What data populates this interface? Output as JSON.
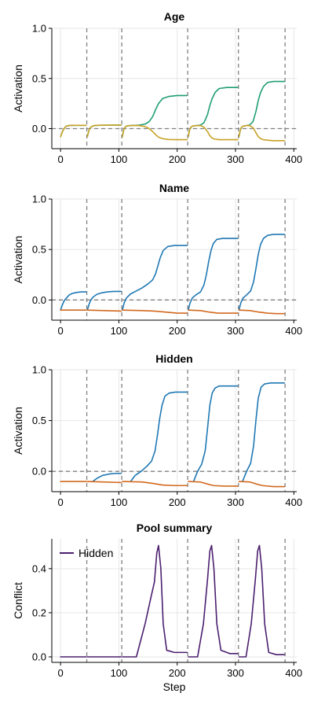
{
  "colors": {
    "background": "#ffffff",
    "grid": "#e6e6e6",
    "axis": "#000000",
    "boundary_line": "#808080",
    "zero_line": "#808080",
    "green": "#1f9e73",
    "gold": "#c9a227",
    "orange": "#d2691e",
    "blue": "#1f78b4",
    "purple": "#4b1f6f"
  },
  "chart_data": [
    {
      "type": "line",
      "title": "Age",
      "xlabel": "",
      "ylabel": "Activation",
      "xlim": [
        -15,
        405
      ],
      "ylim": [
        -0.2,
        1.0
      ],
      "xticks": [
        0,
        100,
        200,
        300,
        400
      ],
      "xtick_labels": [
        "0",
        "100",
        "200",
        "300",
        "400"
      ],
      "yticks": [
        0.0,
        0.5,
        1.0
      ],
      "ytick_labels": [
        "0.0",
        "0.5",
        "1.0"
      ],
      "grid": true,
      "zero_line": true,
      "boundaries": [
        45,
        105,
        218,
        305,
        385
      ],
      "series": [
        {
          "color_key": "green",
          "x": [
            0,
            2,
            4,
            6,
            8,
            10,
            14,
            18,
            25,
            35,
            44
          ],
          "y": [
            -0.08,
            -0.05,
            -0.02,
            0.0,
            0.015,
            0.025,
            0.03,
            0.032,
            0.033,
            0.033,
            0.033
          ]
        },
        {
          "color_key": "gold",
          "x": [
            0,
            2,
            4,
            6,
            8,
            10,
            14,
            18,
            25,
            35,
            44
          ],
          "y": [
            -0.08,
            -0.05,
            -0.02,
            0.0,
            0.015,
            0.025,
            0.03,
            0.032,
            0.033,
            0.033,
            0.033
          ]
        },
        {
          "color_key": "green",
          "x": [
            46,
            48,
            50,
            52,
            56,
            60,
            70,
            85,
            104
          ],
          "y": [
            -0.08,
            -0.03,
            0.0,
            0.015,
            0.028,
            0.032,
            0.034,
            0.035,
            0.035
          ]
        },
        {
          "color_key": "gold",
          "x": [
            46,
            48,
            50,
            52,
            56,
            60,
            70,
            85,
            104
          ],
          "y": [
            -0.08,
            -0.03,
            0.0,
            0.015,
            0.028,
            0.032,
            0.034,
            0.035,
            0.035
          ]
        },
        {
          "color_key": "green",
          "x": [
            106,
            108,
            110,
            113,
            118,
            125,
            135,
            145,
            152,
            158,
            163,
            168,
            175,
            185,
            200,
            217
          ],
          "y": [
            -0.08,
            -0.02,
            0.01,
            0.025,
            0.03,
            0.032,
            0.035,
            0.045,
            0.07,
            0.12,
            0.19,
            0.25,
            0.3,
            0.32,
            0.33,
            0.33
          ]
        },
        {
          "color_key": "gold",
          "x": [
            106,
            108,
            110,
            113,
            118,
            125,
            135,
            145,
            152,
            158,
            163,
            168,
            175,
            185,
            200,
            217
          ],
          "y": [
            -0.08,
            -0.02,
            0.01,
            0.025,
            0.03,
            0.032,
            0.03,
            0.02,
            0.0,
            -0.03,
            -0.06,
            -0.085,
            -0.1,
            -0.108,
            -0.11,
            -0.11
          ]
        },
        {
          "color_key": "green",
          "x": [
            219,
            221,
            223,
            226,
            232,
            240,
            246,
            252,
            256,
            260,
            265,
            272,
            285,
            304
          ],
          "y": [
            -0.08,
            -0.02,
            0.01,
            0.025,
            0.03,
            0.035,
            0.06,
            0.14,
            0.23,
            0.3,
            0.36,
            0.4,
            0.41,
            0.41
          ]
        },
        {
          "color_key": "gold",
          "x": [
            219,
            221,
            223,
            226,
            232,
            240,
            246,
            252,
            256,
            260,
            265,
            272,
            285,
            304
          ],
          "y": [
            -0.08,
            -0.02,
            0.01,
            0.025,
            0.03,
            0.03,
            0.015,
            -0.03,
            -0.07,
            -0.095,
            -0.105,
            -0.11,
            -0.11,
            -0.11
          ]
        },
        {
          "color_key": "green",
          "x": [
            306,
            308,
            310,
            313,
            318,
            324,
            330,
            335,
            339,
            343,
            348,
            355,
            365,
            384
          ],
          "y": [
            -0.08,
            -0.02,
            0.01,
            0.025,
            0.03,
            0.035,
            0.07,
            0.17,
            0.28,
            0.36,
            0.42,
            0.46,
            0.47,
            0.47
          ]
        },
        {
          "color_key": "gold",
          "x": [
            306,
            308,
            310,
            313,
            318,
            324,
            330,
            335,
            339,
            343,
            348,
            355,
            365,
            384
          ],
          "y": [
            -0.08,
            -0.02,
            0.01,
            0.025,
            0.03,
            0.03,
            0.01,
            -0.04,
            -0.08,
            -0.1,
            -0.11,
            -0.115,
            -0.12,
            -0.12
          ]
        }
      ]
    },
    {
      "type": "line",
      "title": "Name",
      "xlabel": "",
      "ylabel": "Activation",
      "xlim": [
        -15,
        405
      ],
      "ylim": [
        -0.2,
        1.0
      ],
      "xticks": [
        0,
        100,
        200,
        300,
        400
      ],
      "xtick_labels": [
        "0",
        "100",
        "200",
        "300",
        "400"
      ],
      "yticks": [
        0.0,
        0.5,
        1.0
      ],
      "ytick_labels": [
        "0.0",
        "0.5",
        "1.0"
      ],
      "grid": true,
      "zero_line": true,
      "boundaries": [
        45,
        105,
        218,
        305,
        385
      ],
      "series": [
        {
          "color_key": "blue",
          "x": [
            0,
            3,
            6,
            10,
            15,
            20,
            28,
            36,
            44
          ],
          "y": [
            -0.1,
            -0.05,
            -0.01,
            0.02,
            0.05,
            0.065,
            0.075,
            0.08,
            0.08
          ]
        },
        {
          "color_key": "blue",
          "x": [
            46,
            49,
            52,
            56,
            62,
            70,
            80,
            92,
            104
          ],
          "y": [
            -0.1,
            -0.04,
            0.0,
            0.03,
            0.055,
            0.07,
            0.08,
            0.085,
            0.085
          ]
        },
        {
          "color_key": "blue",
          "x": [
            106,
            109,
            113,
            120,
            130,
            140,
            150,
            158,
            163,
            167,
            171,
            176,
            184,
            195,
            217
          ],
          "y": [
            -0.1,
            -0.03,
            0.02,
            0.06,
            0.09,
            0.12,
            0.16,
            0.2,
            0.26,
            0.34,
            0.42,
            0.49,
            0.53,
            0.54,
            0.54
          ]
        },
        {
          "color_key": "blue",
          "x": [
            219,
            222,
            226,
            232,
            240,
            246,
            250,
            254,
            258,
            262,
            268,
            278,
            290,
            304
          ],
          "y": [
            -0.1,
            -0.03,
            0.02,
            0.05,
            0.08,
            0.15,
            0.25,
            0.38,
            0.49,
            0.56,
            0.6,
            0.61,
            0.61,
            0.61
          ]
        },
        {
          "color_key": "blue",
          "x": [
            306,
            309,
            313,
            319,
            326,
            331,
            335,
            339,
            343,
            348,
            355,
            365,
            384
          ],
          "y": [
            -0.1,
            -0.03,
            0.02,
            0.05,
            0.09,
            0.18,
            0.31,
            0.45,
            0.55,
            0.61,
            0.64,
            0.65,
            0.65
          ]
        },
        {
          "color_key": "orange",
          "x": [
            0,
            20,
            44
          ],
          "y": [
            -0.1,
            -0.1,
            -0.1
          ]
        },
        {
          "color_key": "orange",
          "x": [
            46,
            75,
            104
          ],
          "y": [
            -0.1,
            -0.105,
            -0.11
          ]
        },
        {
          "color_key": "orange",
          "x": [
            106,
            140,
            160,
            180,
            200,
            217
          ],
          "y": [
            -0.1,
            -0.105,
            -0.11,
            -0.12,
            -0.13,
            -0.13
          ]
        },
        {
          "color_key": "orange",
          "x": [
            219,
            240,
            255,
            270,
            290,
            304
          ],
          "y": [
            -0.1,
            -0.105,
            -0.12,
            -0.13,
            -0.13,
            -0.13
          ]
        },
        {
          "color_key": "orange",
          "x": [
            306,
            325,
            340,
            355,
            370,
            384
          ],
          "y": [
            -0.1,
            -0.105,
            -0.12,
            -0.13,
            -0.135,
            -0.135
          ]
        }
      ]
    },
    {
      "type": "line",
      "title": "Hidden",
      "xlabel": "",
      "ylabel": "Activation",
      "xlim": [
        -15,
        405
      ],
      "ylim": [
        -0.2,
        1.0
      ],
      "xticks": [
        0,
        100,
        200,
        300,
        400
      ],
      "xtick_labels": [
        "0",
        "100",
        "200",
        "300",
        "400"
      ],
      "yticks": [
        0.0,
        0.5,
        1.0
      ],
      "ytick_labels": [
        "0.0",
        "0.5",
        "1.0"
      ],
      "grid": true,
      "zero_line": true,
      "boundaries": [
        45,
        105,
        218,
        305,
        385
      ],
      "series": [
        {
          "color_key": "blue",
          "x": [
            55,
            62,
            72,
            85,
            95,
            104
          ],
          "y": [
            -0.1,
            -0.07,
            -0.04,
            -0.025,
            -0.02,
            -0.02
          ]
        },
        {
          "color_key": "blue",
          "x": [
            120,
            128,
            138,
            148,
            156,
            162,
            166,
            170,
            174,
            179,
            186,
            197,
            217
          ],
          "y": [
            -0.1,
            -0.04,
            0.0,
            0.05,
            0.1,
            0.2,
            0.35,
            0.52,
            0.65,
            0.74,
            0.77,
            0.78,
            0.78
          ]
        },
        {
          "color_key": "blue",
          "x": [
            228,
            235,
            242,
            248,
            252,
            256,
            260,
            265,
            272,
            285,
            304
          ],
          "y": [
            -0.1,
            0.0,
            0.07,
            0.2,
            0.42,
            0.65,
            0.77,
            0.82,
            0.84,
            0.84,
            0.84
          ]
        },
        {
          "color_key": "blue",
          "x": [
            312,
            319,
            326,
            331,
            335,
            339,
            344,
            350,
            360,
            384
          ],
          "y": [
            -0.1,
            0.0,
            0.08,
            0.25,
            0.5,
            0.72,
            0.83,
            0.86,
            0.87,
            0.87
          ]
        },
        {
          "color_key": "orange",
          "x": [
            0,
            20,
            44
          ],
          "y": [
            -0.1,
            -0.1,
            -0.1
          ]
        },
        {
          "color_key": "orange",
          "x": [
            46,
            75,
            104
          ],
          "y": [
            -0.1,
            -0.105,
            -0.11
          ]
        },
        {
          "color_key": "orange",
          "x": [
            106,
            140,
            160,
            175,
            195,
            217
          ],
          "y": [
            -0.1,
            -0.105,
            -0.12,
            -0.135,
            -0.14,
            -0.14
          ]
        },
        {
          "color_key": "orange",
          "x": [
            219,
            240,
            252,
            262,
            280,
            304
          ],
          "y": [
            -0.1,
            -0.105,
            -0.125,
            -0.14,
            -0.145,
            -0.145
          ]
        },
        {
          "color_key": "orange",
          "x": [
            306,
            325,
            336,
            346,
            365,
            384
          ],
          "y": [
            -0.1,
            -0.105,
            -0.125,
            -0.14,
            -0.15,
            -0.15
          ]
        }
      ]
    },
    {
      "type": "line",
      "title": "Pool summary",
      "xlabel": "Step",
      "ylabel": "Conflict",
      "xlim": [
        -15,
        405
      ],
      "ylim": [
        -0.025,
        0.535
      ],
      "xticks": [
        0,
        100,
        200,
        300,
        400
      ],
      "xtick_labels": [
        "0",
        "100",
        "200",
        "300",
        "400"
      ],
      "yticks": [
        0.0,
        0.2,
        0.4
      ],
      "ytick_labels": [
        "0.0",
        "0.2",
        "0.4"
      ],
      "grid": true,
      "zero_line": false,
      "boundaries": [
        45,
        105,
        218,
        305,
        385
      ],
      "legend": {
        "position": "top-left",
        "entries": [
          {
            "label": "Hidden",
            "color_key": "purple"
          }
        ]
      },
      "series": [
        {
          "name": "Hidden",
          "color_key": "purple",
          "x": [
            0,
            44
          ],
          "y": [
            0.0,
            0.0
          ]
        },
        {
          "color_key": "purple",
          "x": [
            46,
            104
          ],
          "y": [
            0.0,
            0.0
          ]
        },
        {
          "color_key": "purple",
          "x": [
            106,
            130,
            145,
            155,
            161,
            165,
            168,
            172,
            176,
            182,
            195,
            217
          ],
          "y": [
            0.0,
            0.0,
            0.15,
            0.27,
            0.34,
            0.47,
            0.505,
            0.4,
            0.15,
            0.03,
            0.02,
            0.02
          ]
        },
        {
          "color_key": "purple",
          "x": [
            219,
            235,
            245,
            252,
            256,
            259,
            263,
            268,
            275,
            290,
            304
          ],
          "y": [
            0.0,
            0.0,
            0.15,
            0.35,
            0.48,
            0.505,
            0.4,
            0.15,
            0.03,
            0.015,
            0.015
          ]
        },
        {
          "color_key": "purple",
          "x": [
            306,
            318,
            327,
            334,
            338,
            341,
            345,
            350,
            357,
            370,
            384
          ],
          "y": [
            0.0,
            0.0,
            0.15,
            0.35,
            0.48,
            0.505,
            0.4,
            0.15,
            0.02,
            0.01,
            0.01
          ]
        }
      ]
    }
  ]
}
